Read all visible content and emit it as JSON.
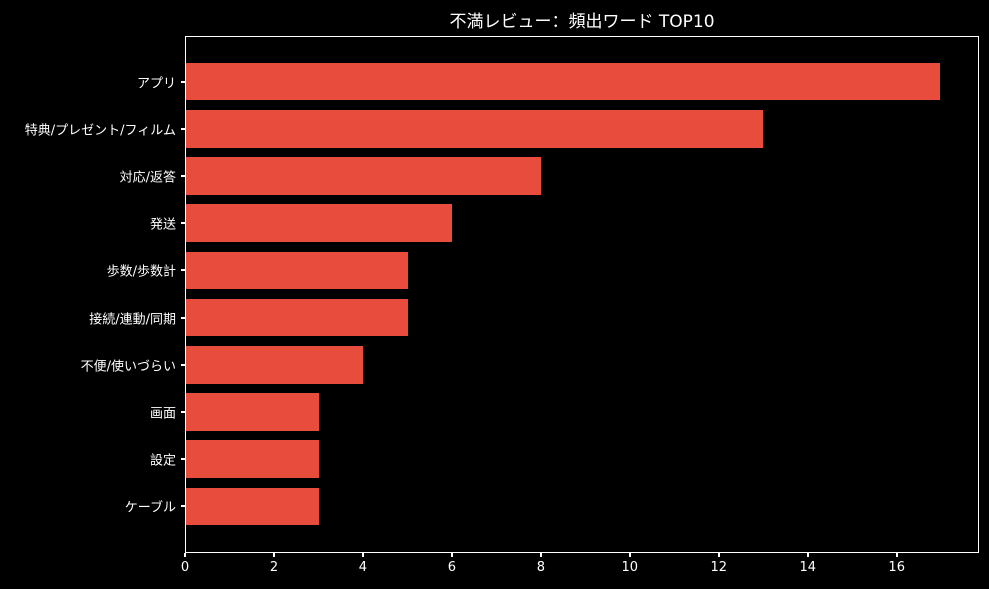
{
  "title": "不満レビュー：頻出ワード TOP10",
  "colors": {
    "background": "#000000",
    "bar": "#e74c3c",
    "text": "#ffffff",
    "axis": "#ffffff"
  },
  "chart_data": {
    "type": "bar",
    "orientation": "horizontal",
    "title": "不満レビュー：頻出ワード TOP10",
    "categories": [
      "アプリ",
      "特典/プレゼント/フィルム",
      "対応/返答",
      "発送",
      "歩数/歩数計",
      "接続/連動/同期",
      "不便/使いづらい",
      "画面",
      "設定",
      "ケーブル"
    ],
    "values": [
      17,
      13,
      8,
      6,
      5,
      5,
      4,
      3,
      3,
      3
    ],
    "xlabel": "",
    "ylabel": "",
    "xlim": [
      0,
      17.85
    ],
    "xticks": [
      0,
      2,
      4,
      6,
      8,
      10,
      12,
      14,
      16
    ],
    "grid": false,
    "legend": null,
    "bar_color": "#e74c3c"
  }
}
